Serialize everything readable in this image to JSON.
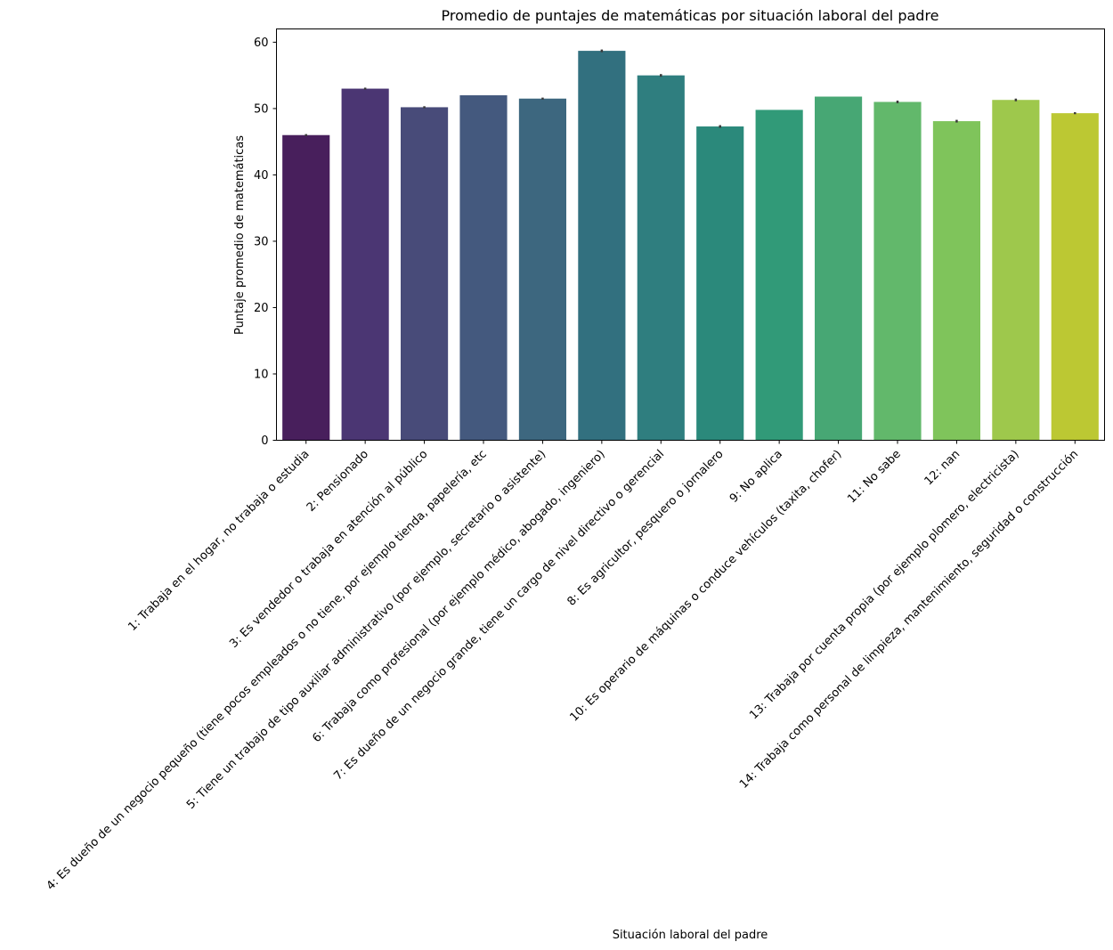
{
  "chart_data": {
    "type": "bar",
    "title": "Promedio de puntajes de matemáticas por situación laboral del padre",
    "xlabel": "Situación laboral del padre",
    "ylabel": "Puntaje promedio de matemáticas",
    "ylim": [
      0,
      62
    ],
    "yticks": [
      0,
      10,
      20,
      30,
      40,
      50,
      60
    ],
    "grid": false,
    "legend": "none",
    "categories": [
      "1: Trabaja en el hogar, no trabaja o estudia",
      "2: Pensionado",
      "3: Es vendedor o trabaja en atención al público",
      "4: Es dueño de un negocio pequeño (tiene pocos empleados o no tiene, por ejemplo tienda, papelería, etc",
      "5: Tiene un trabajo de tipo auxiliar administrativo (por ejemplo, secretario o asistente)",
      "6: Trabaja como profesional (por ejemplo médico, abogado, ingeniero)",
      "7: Es dueño de un negocio grande, tiene un cargo de nivel directivo o gerencial",
      "8: Es agricultor, pesquero o jornalero",
      "9: No aplica",
      "10: Es operario de máquinas o conduce vehículos (taxita, chofer)",
      "11: No sabe",
      "12: nan",
      "13: Trabaja por cuenta propia (por ejemplo plomero, electricista)",
      "14: Trabaja como personal de limpieza, mantenimiento, seguridad o construcción"
    ],
    "values": [
      46.0,
      53.0,
      50.2,
      52.0,
      51.5,
      58.7,
      55.0,
      47.3,
      49.8,
      51.8,
      51.0,
      48.1,
      51.3,
      49.3
    ],
    "errors": [
      0.15,
      0.15,
      0.15,
      0.0,
      0.15,
      0.2,
      0.2,
      0.2,
      0.0,
      0.0,
      0.2,
      0.2,
      0.2,
      0.15
    ],
    "colors": [
      "#481f5c",
      "#4b3673",
      "#484b79",
      "#44597e",
      "#3d677f",
      "#32707f",
      "#2f7e7f",
      "#2b897b",
      "#319a78",
      "#47a774",
      "#62b86b",
      "#7fc45b",
      "#9ec84c",
      "#bcc833"
    ]
  }
}
